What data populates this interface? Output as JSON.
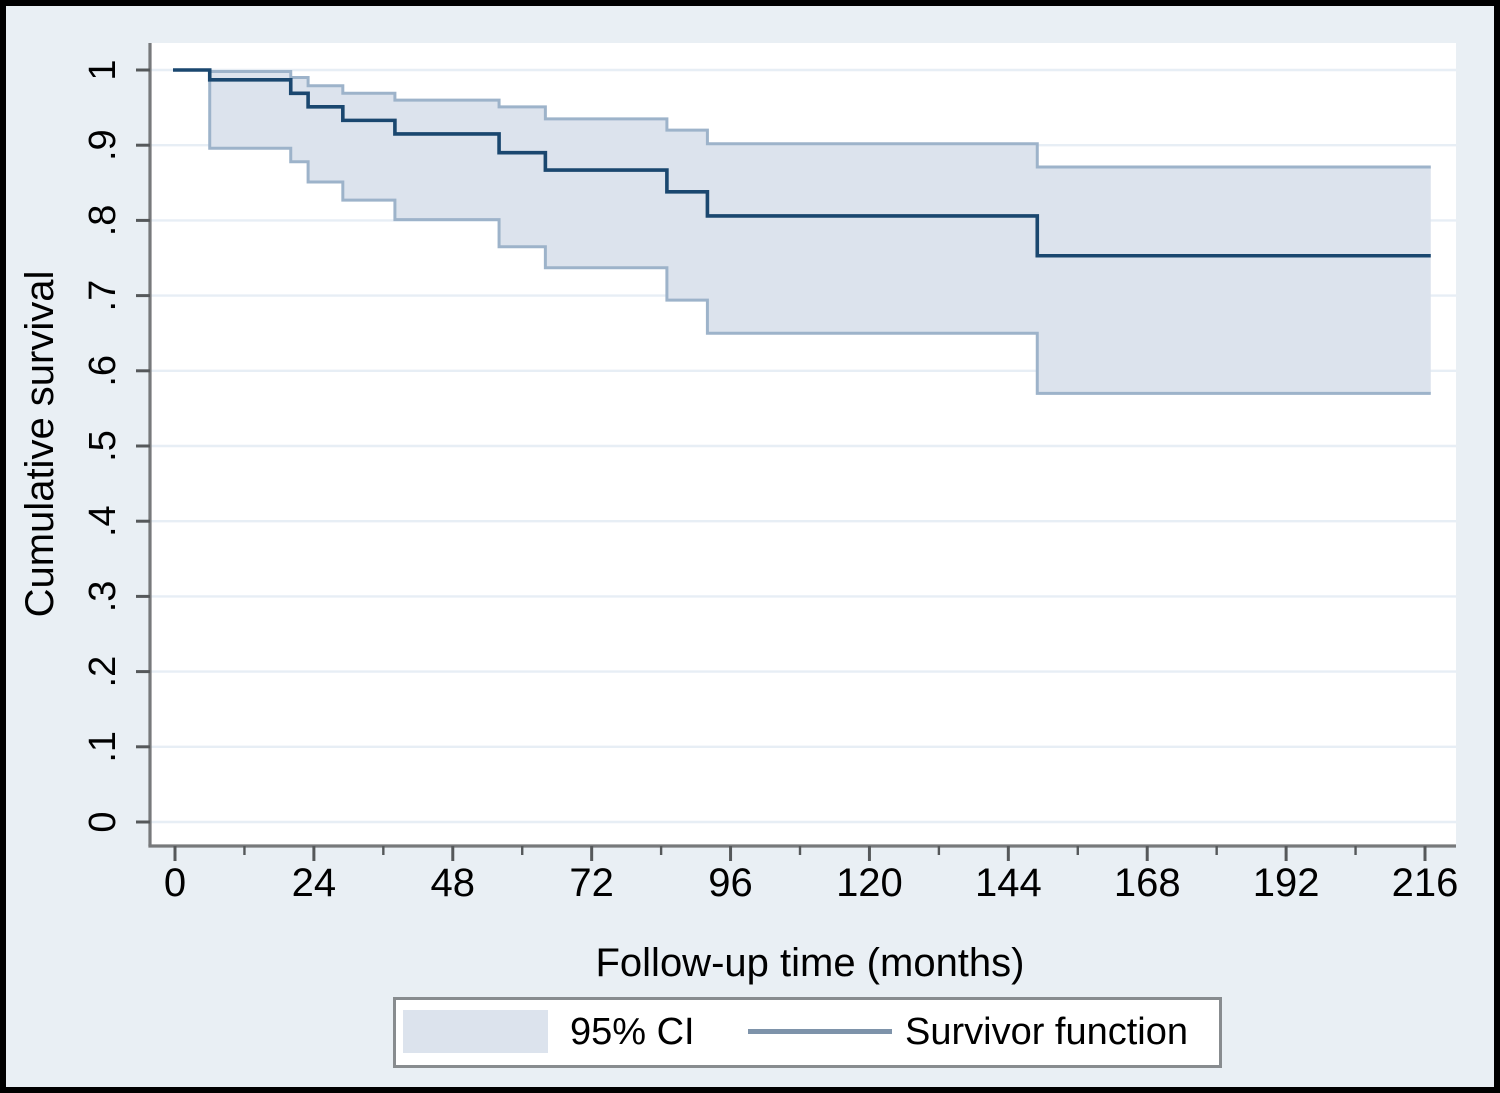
{
  "figure": {
    "kind": "kaplan-meier-plot",
    "legend": [
      {
        "swatch": "area",
        "label": "95% CI"
      },
      {
        "swatch": "line",
        "label": "Survivor function"
      }
    ]
  },
  "chart_data": {
    "type": "line",
    "subtype": "kaplan_meier_step",
    "title": "",
    "xlabel": "Follow-up time (months)",
    "ylabel": "Cumulative survival",
    "xlim": [
      0,
      221.5
    ],
    "ylim": [
      -0.031,
      1.04
    ],
    "grid": "horizontal",
    "legend_position": "bottom-center",
    "x_ticks": {
      "values": [
        0,
        24,
        48,
        72,
        96,
        120,
        144,
        168,
        192,
        216
      ],
      "labels": [
        "0",
        "24",
        "48",
        "72",
        "96",
        "120",
        "144",
        "168",
        "192",
        "216"
      ]
    },
    "x_minor_ticks": [
      12,
      36,
      60,
      84,
      108,
      132,
      156,
      180,
      204
    ],
    "y_ticks": {
      "values": [
        0,
        0.1,
        0.2,
        0.3,
        0.4,
        0.5,
        0.6,
        0.7,
        0.8,
        0.9,
        1
      ],
      "labels": [
        "0",
        ".1",
        ".2",
        ".3",
        ".4",
        ".5",
        ".6",
        ".7",
        ".8",
        ".9",
        "1"
      ]
    },
    "step_times": [
      0,
      6,
      20,
      23,
      29,
      38,
      56,
      64,
      85,
      92,
      149
    ],
    "end_time": 217,
    "series": [
      {
        "name": "Survivor function",
        "values": [
          1,
          0.987,
          0.969,
          0.951,
          0.933,
          0.915,
          0.89,
          0.867,
          0.838,
          0.806,
          0.753
        ]
      },
      {
        "name": "95% CI upper",
        "values": [
          null,
          0.998,
          0.99,
          0.979,
          0.969,
          0.96,
          0.951,
          0.935,
          0.92,
          0.902,
          0.871
        ]
      },
      {
        "name": "95% CI lower",
        "values": [
          null,
          0.896,
          0.878,
          0.851,
          0.827,
          0.801,
          0.765,
          0.737,
          0.694,
          0.65,
          0.57
        ]
      }
    ]
  },
  "colors": {
    "background": "#e9eff4",
    "plot_background": "#ffffff",
    "gridline": "#e7eef5",
    "axis_line": "#77797b",
    "tick": "#55585a",
    "survivor_line": "#1a476f",
    "ci_fill": "#dce3ed",
    "ci_edge": "#9db3ca",
    "legend_line": "#7e93aa",
    "legend_border": "#888c8f",
    "frame": "#000000",
    "text": "#000000"
  }
}
